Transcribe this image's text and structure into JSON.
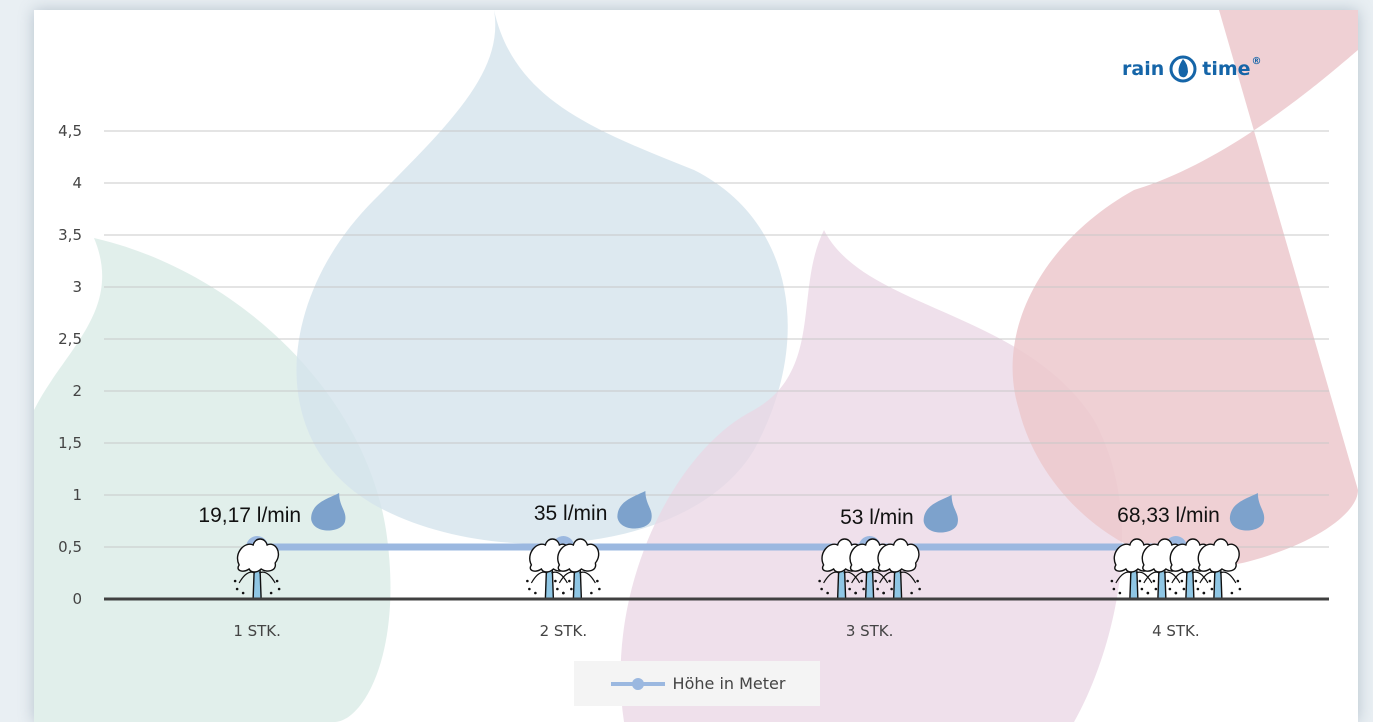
{
  "logo": {
    "text_left": "rain",
    "text_right": "time",
    "registered": "®"
  },
  "colors": {
    "series": "#9bb8e0",
    "drop": "#7da2cc",
    "grid": "#c8c8c8",
    "axis": "#404040",
    "blob_green": "#dcece7",
    "blob_blue": "#d4e3ec",
    "blob_pink": "#ead5e4",
    "blob_red": "#ecc8cd",
    "logo": "#1565a8"
  },
  "chart_data": {
    "type": "line",
    "categories": [
      "1 STK.",
      "2 STK.",
      "3 STK.",
      "4 STK."
    ],
    "series": [
      {
        "name": "Höhe in Meter",
        "values": [
          0.5,
          0.5,
          0.5,
          0.5
        ]
      }
    ],
    "data_labels": [
      "19,17 l/min",
      "35 l/min",
      "53 l/min",
      "68,33 l/min"
    ],
    "fountain_counts": [
      1,
      2,
      3,
      4
    ],
    "yticks": [
      "0",
      "0,5",
      "1",
      "1,5",
      "2",
      "2,5",
      "3",
      "3,5",
      "4",
      "4,5"
    ],
    "ylim": [
      0,
      4.5
    ],
    "grid": true,
    "legend_position": "bottom",
    "title": "",
    "xlabel": "",
    "ylabel": ""
  }
}
